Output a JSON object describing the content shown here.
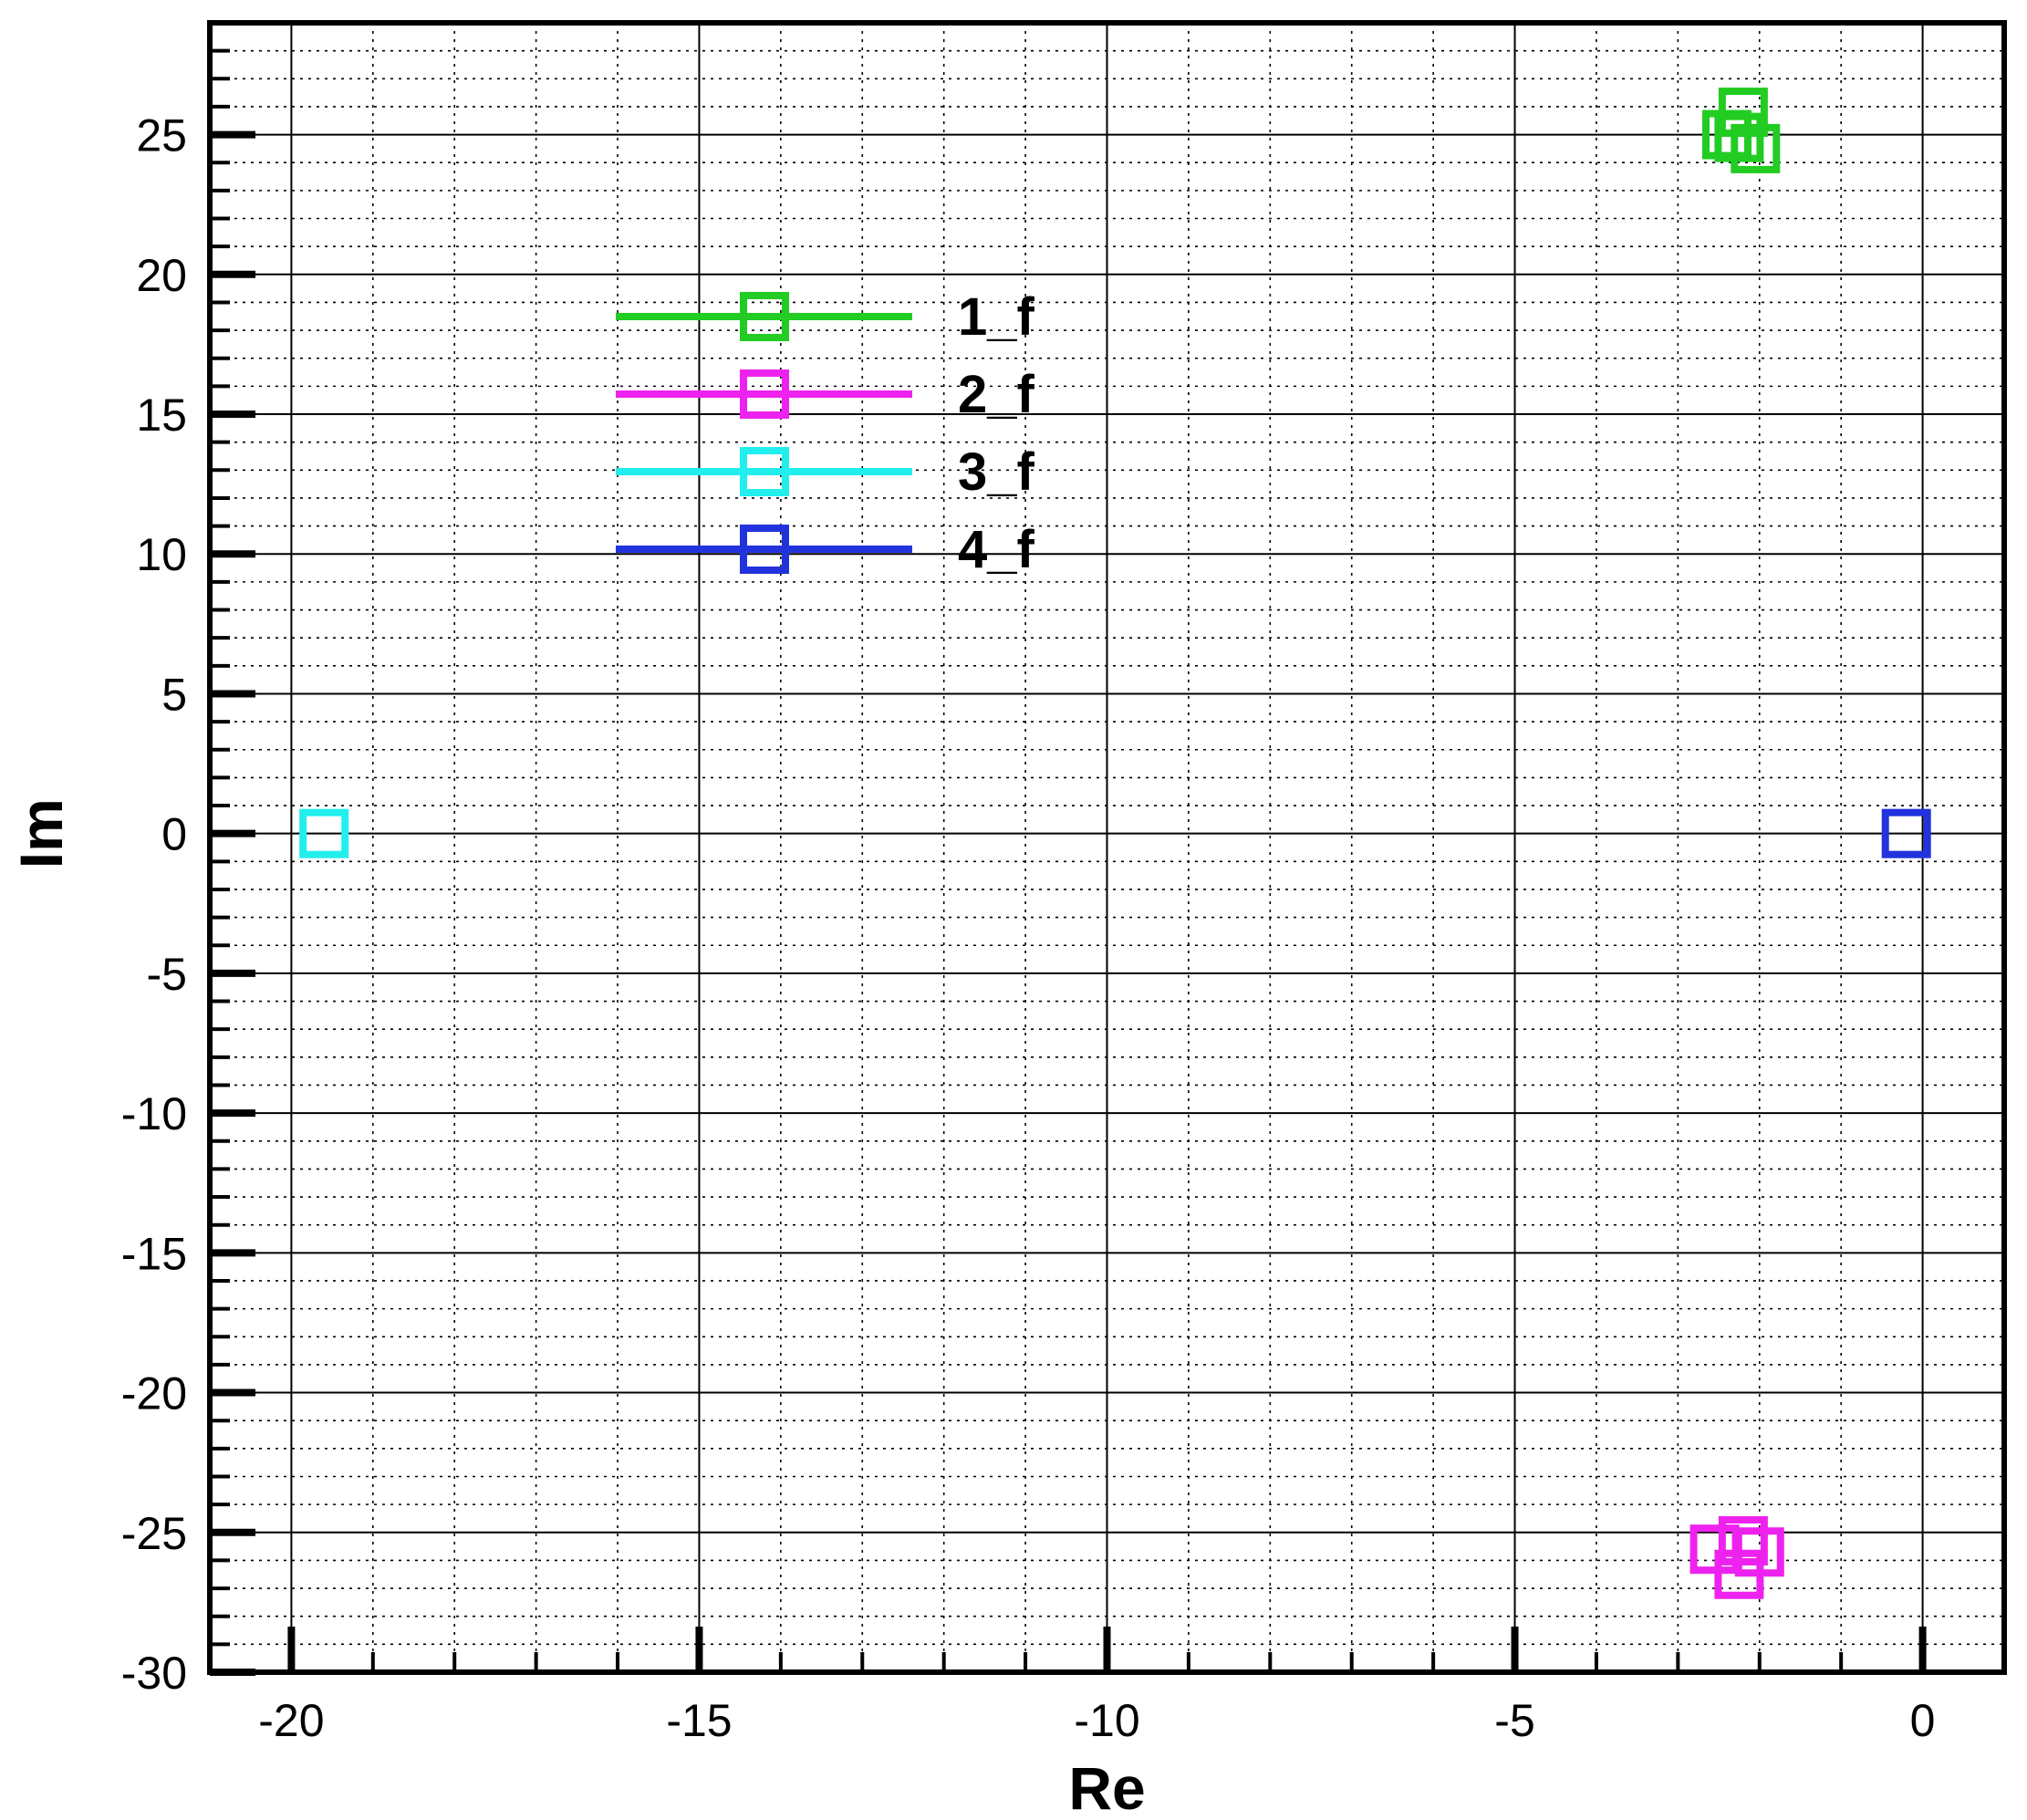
{
  "chart_data": {
    "type": "scatter",
    "title": "",
    "xlabel": "Re",
    "ylabel": "Im",
    "xlim": [
      -21,
      1
    ],
    "ylim": [
      -30,
      29
    ],
    "x_ticks": [
      -20,
      -15,
      -10,
      -5,
      0
    ],
    "x_tick_labels": [
      "-20",
      "-15",
      "-10",
      "-5",
      "0"
    ],
    "y_ticks": [
      -30,
      -25,
      -20,
      -15,
      -10,
      -5,
      0,
      5,
      10,
      15,
      20,
      25
    ],
    "y_tick_labels": [
      "-30",
      "-25",
      "-20",
      "-15",
      "-10",
      "-5",
      "0",
      "5",
      "10",
      "15",
      "20",
      "25"
    ],
    "x_minor_step": 1,
    "y_minor_step": 1,
    "grid": true,
    "legend_position": "upper-left",
    "marker": "hollow-square",
    "series": [
      {
        "name": "1_f",
        "color": "#22cc22",
        "points": [
          [
            -2.4,
            25.0
          ],
          [
            -2.2,
            25.8
          ],
          [
            -2.05,
            24.5
          ],
          [
            -2.25,
            24.9
          ]
        ]
      },
      {
        "name": "2_f",
        "color": "#ee22ee",
        "points": [
          [
            -2.55,
            -25.6
          ],
          [
            -2.2,
            -25.3
          ],
          [
            -2.25,
            -26.5
          ],
          [
            -2.0,
            -25.7
          ]
        ]
      },
      {
        "name": "3_f",
        "color": "#22eeee",
        "points": [
          [
            -19.6,
            0.0
          ]
        ]
      },
      {
        "name": "4_f",
        "color": "#2233dd",
        "points": [
          [
            -0.2,
            0.0
          ]
        ]
      }
    ]
  }
}
